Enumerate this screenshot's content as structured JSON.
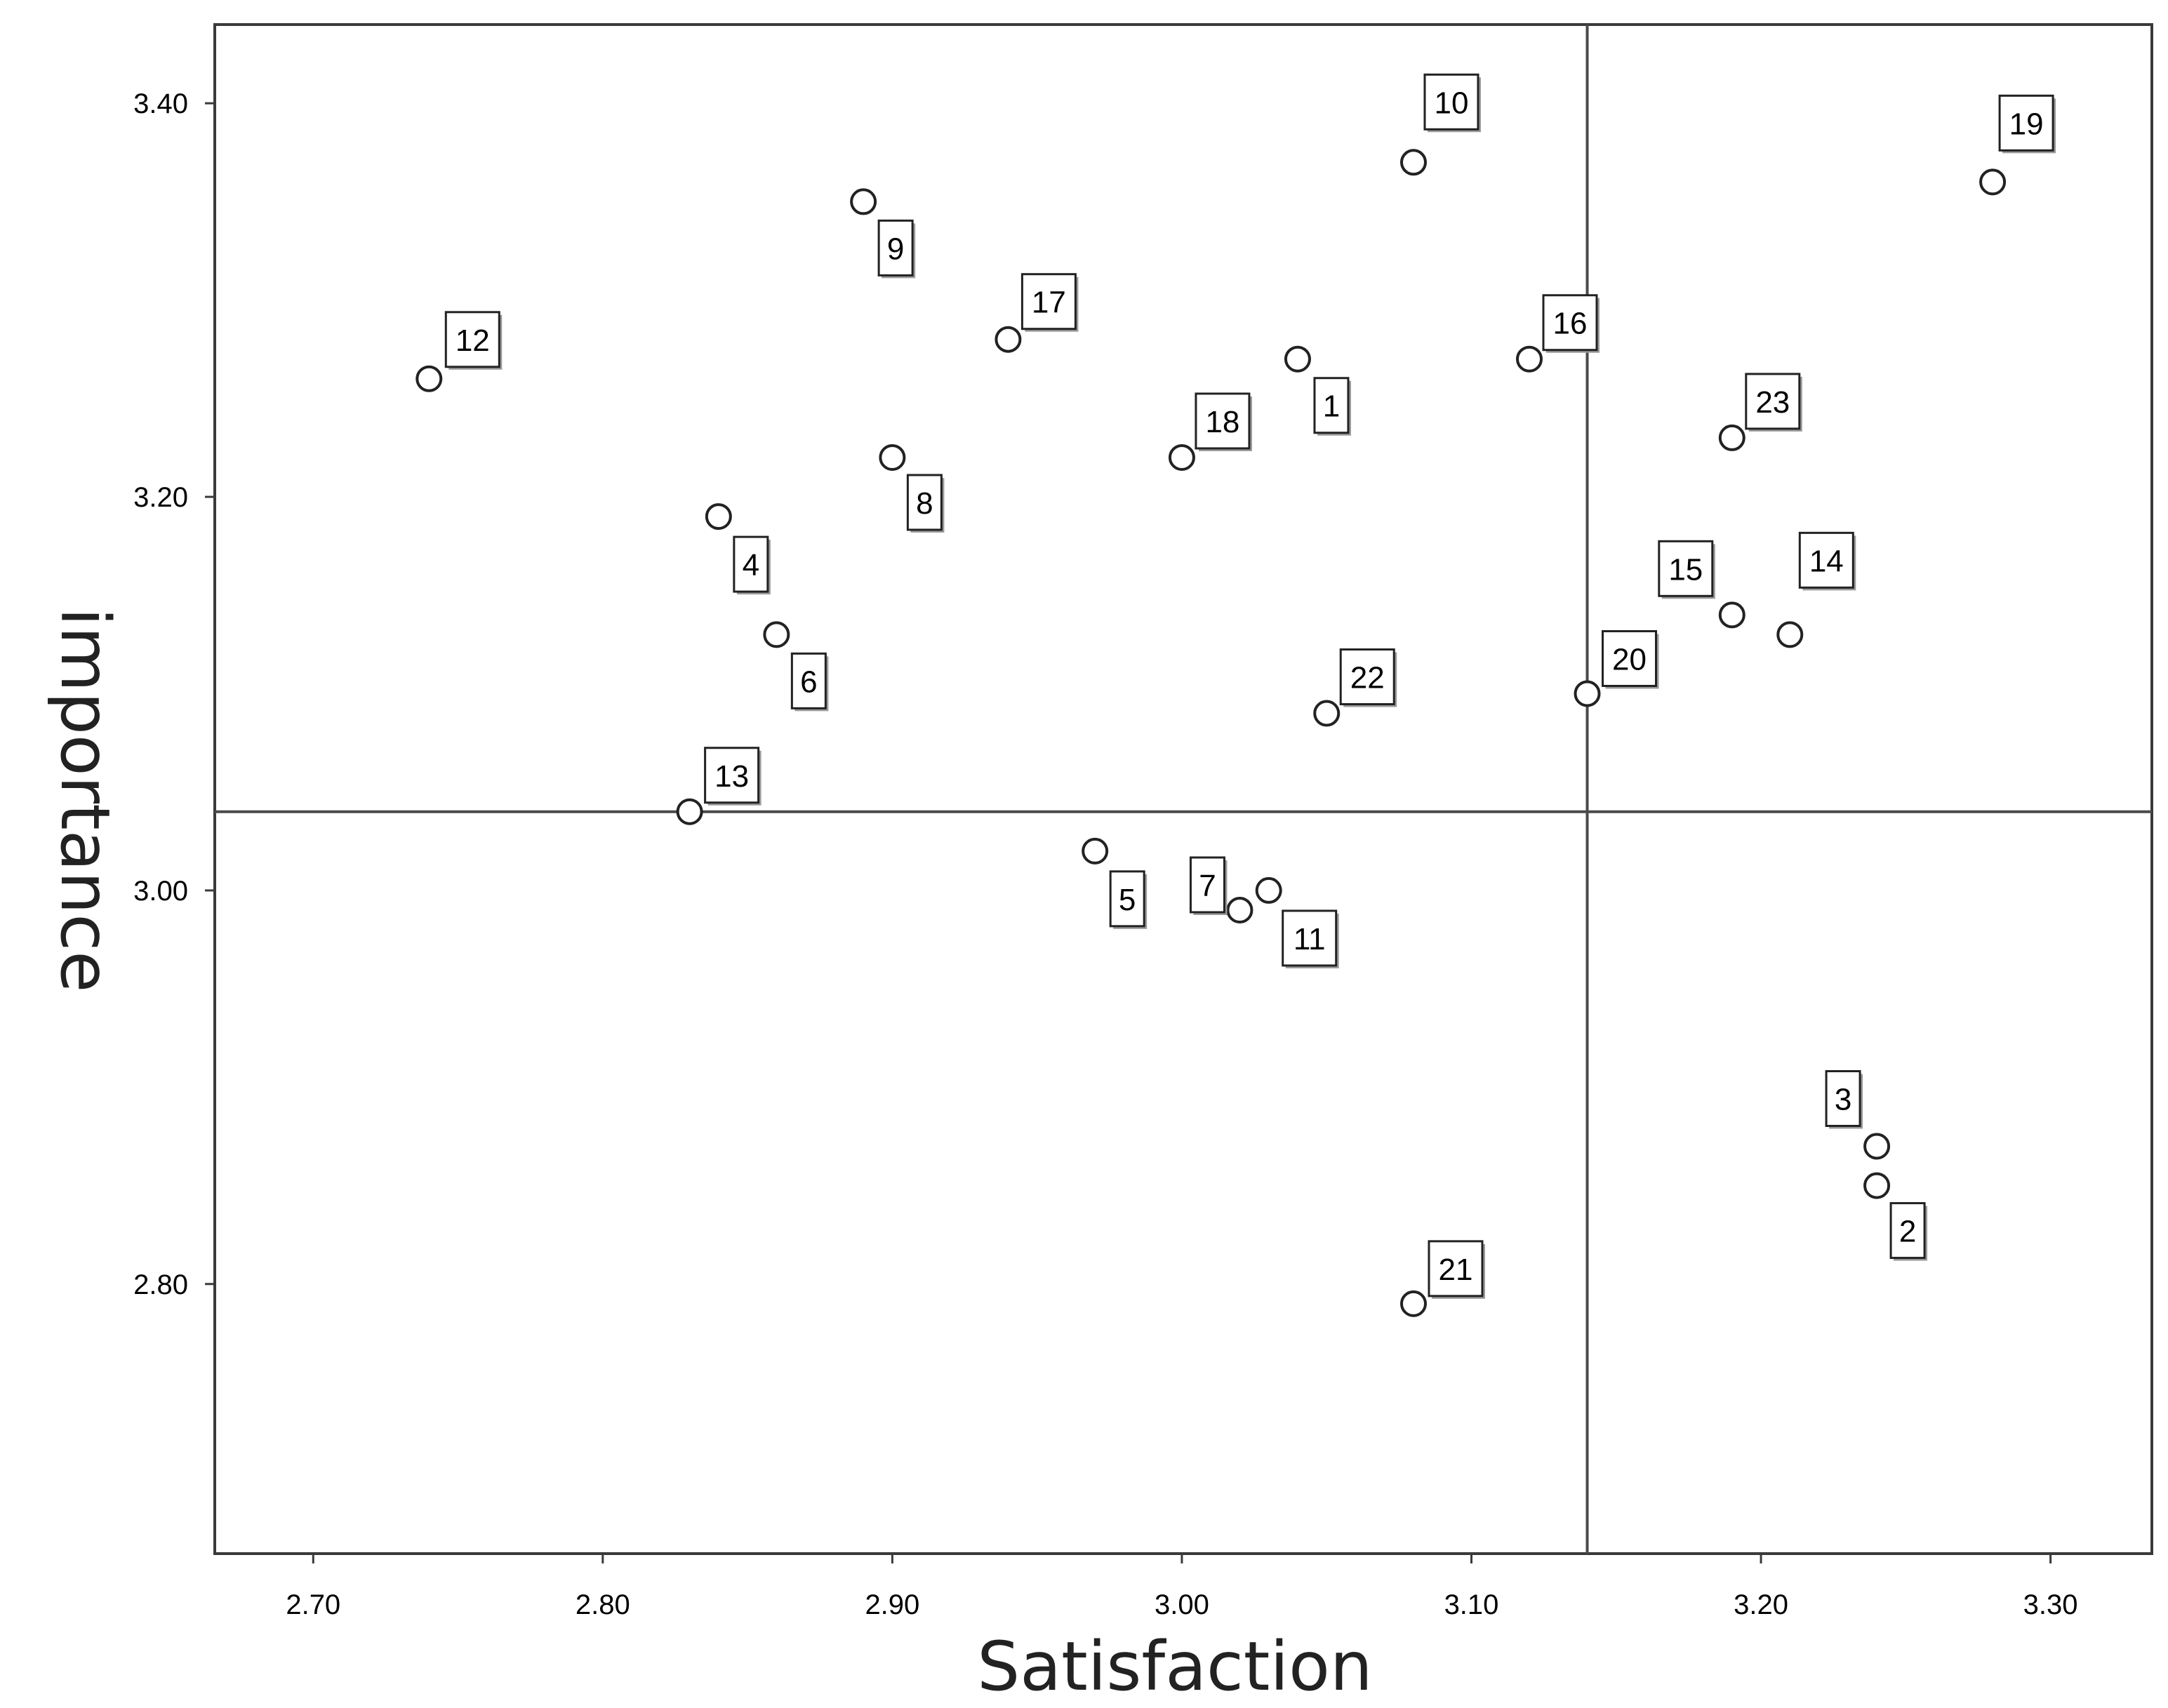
{
  "chart_data": {
    "type": "scatter",
    "xlabel": "Satisfaction",
    "ylabel": "importance",
    "xlim": [
      2.666,
      3.335
    ],
    "ylim": [
      2.663,
      3.44
    ],
    "x_ticks": [
      "2.70",
      "2.80",
      "2.90",
      "3.00",
      "3.10",
      "3.20",
      "3.30"
    ],
    "y_ticks": [
      "2.80",
      "3.00",
      "3.20",
      "3.40"
    ],
    "reference_lines": {
      "x": 3.14,
      "y": 3.04
    },
    "grid": false,
    "marker": "open-circle",
    "points": [
      {
        "label": "1",
        "x": 3.04,
        "y": 3.27
      },
      {
        "label": "2",
        "x": 3.24,
        "y": 2.85
      },
      {
        "label": "3",
        "x": 3.24,
        "y": 2.87
      },
      {
        "label": "4",
        "x": 2.84,
        "y": 3.19
      },
      {
        "label": "5",
        "x": 2.97,
        "y": 3.02
      },
      {
        "label": "6",
        "x": 2.86,
        "y": 3.13
      },
      {
        "label": "7",
        "x": 3.02,
        "y": 2.99
      },
      {
        "label": "8",
        "x": 2.9,
        "y": 3.22
      },
      {
        "label": "9",
        "x": 2.89,
        "y": 3.35
      },
      {
        "label": "10",
        "x": 3.08,
        "y": 3.37
      },
      {
        "label": "11",
        "x": 3.03,
        "y": 3.0
      },
      {
        "label": "12",
        "x": 2.74,
        "y": 3.26
      },
      {
        "label": "13",
        "x": 2.83,
        "y": 3.04
      },
      {
        "label": "14",
        "x": 3.21,
        "y": 3.13
      },
      {
        "label": "15",
        "x": 3.19,
        "y": 3.14
      },
      {
        "label": "16",
        "x": 3.12,
        "y": 3.27
      },
      {
        "label": "17",
        "x": 2.94,
        "y": 3.28
      },
      {
        "label": "18",
        "x": 3.0,
        "y": 3.22
      },
      {
        "label": "19",
        "x": 3.28,
        "y": 3.36
      },
      {
        "label": "20",
        "x": 3.14,
        "y": 3.1
      },
      {
        "label": "21",
        "x": 3.08,
        "y": 2.79
      },
      {
        "label": "22",
        "x": 3.05,
        "y": 3.09
      },
      {
        "label": "23",
        "x": 3.19,
        "y": 3.23
      }
    ]
  }
}
